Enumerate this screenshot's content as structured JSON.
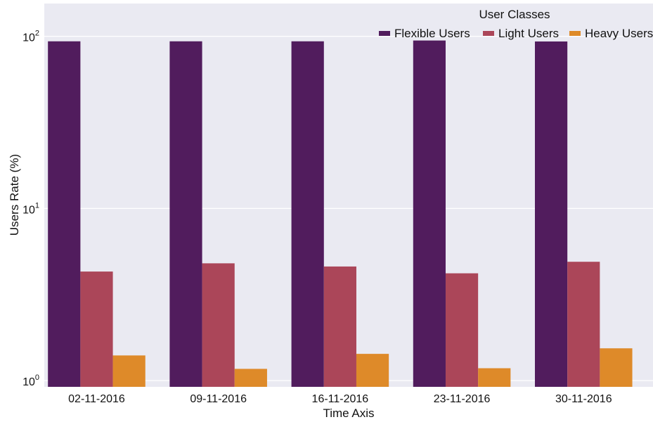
{
  "chart_data": {
    "type": "bar",
    "title": "",
    "xlabel": "Time Axis",
    "ylabel": "Users Rate (%)",
    "yscale": "log",
    "ylim": [
      0.92,
      155
    ],
    "yticks": [
      {
        "value": 1,
        "base": "10",
        "exp": "0"
      },
      {
        "value": 10,
        "base": "10",
        "exp": "1"
      },
      {
        "value": 100,
        "base": "10",
        "exp": "2"
      }
    ],
    "categories": [
      "02-11-2016",
      "09-11-2016",
      "16-11-2016",
      "23-11-2016",
      "30-11-2016"
    ],
    "legend": {
      "title": "User Classes",
      "placement": "top-right"
    },
    "grid": true,
    "background": "#EAEAF2",
    "series": [
      {
        "name": "Flexible Users",
        "color": "#511C5D",
        "values": [
          93.5,
          93.5,
          93.5,
          94.5,
          93.3
        ]
      },
      {
        "name": "Light Users",
        "color": "#AB4659",
        "values": [
          4.3,
          4.8,
          4.6,
          4.2,
          4.9
        ]
      },
      {
        "name": "Heavy Users",
        "color": "#DE8A29",
        "values": [
          1.4,
          1.17,
          1.43,
          1.18,
          1.54
        ]
      }
    ]
  }
}
